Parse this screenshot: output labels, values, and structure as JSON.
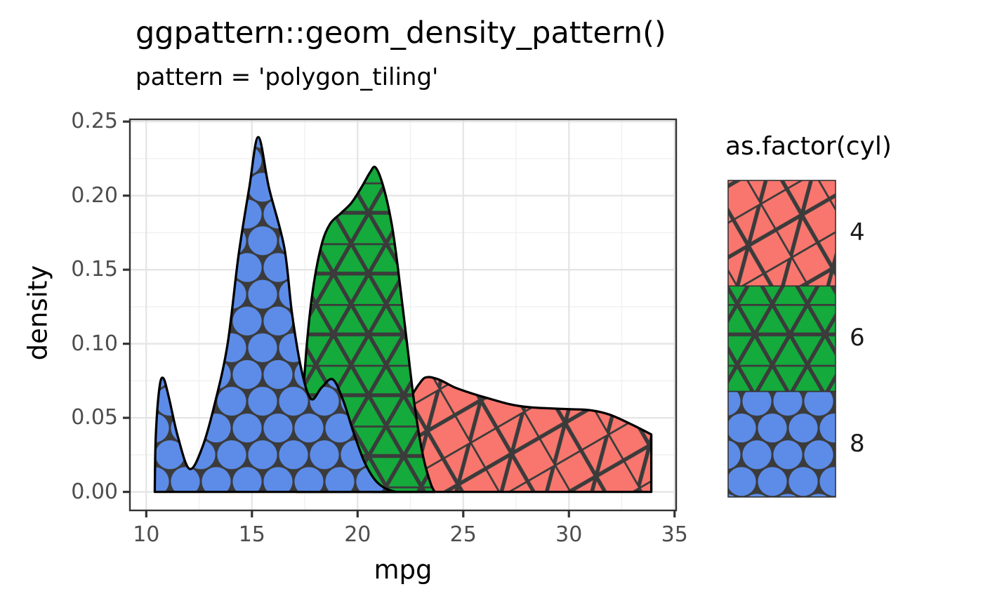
{
  "chart_data": {
    "type": "area",
    "title": "ggpattern::geom_density_pattern()",
    "subtitle": "pattern = 'polygon_tiling'",
    "xlabel": "mpg",
    "ylabel": "density",
    "legend_title": "as.factor(cyl)",
    "legend_position": "right",
    "xlim": [
      9.225,
      35.075
    ],
    "ylim": [
      -0.0125,
      0.2515
    ],
    "x_tick_values": [
      10,
      15,
      20,
      25,
      30,
      35
    ],
    "x_tick_labels": [
      "10",
      "15",
      "20",
      "25",
      "30",
      "35"
    ],
    "y_tick_values": [
      0.0,
      0.05,
      0.1,
      0.15,
      0.2,
      0.25
    ],
    "y_tick_labels": [
      "0.00",
      "0.05",
      "0.10",
      "0.15",
      "0.20",
      "0.25"
    ],
    "grid": "major-and-minor",
    "series": [
      {
        "name": "4",
        "color": "#F8766D",
        "pattern": "polygon-tiling-squares",
        "points": [
          [
            20.7,
            0
          ],
          [
            21.2,
            0.012
          ],
          [
            21.8,
            0.034
          ],
          [
            22.4,
            0.06
          ],
          [
            23.0,
            0.0745
          ],
          [
            23.35,
            0.0775
          ],
          [
            23.9,
            0.0755
          ],
          [
            24.6,
            0.0705
          ],
          [
            25.4,
            0.0665
          ],
          [
            26.3,
            0.0627
          ],
          [
            27.2,
            0.0592
          ],
          [
            28.1,
            0.0572
          ],
          [
            29.1,
            0.0564
          ],
          [
            30.1,
            0.0558
          ],
          [
            31.0,
            0.0552
          ],
          [
            31.9,
            0.0523
          ],
          [
            32.9,
            0.046
          ],
          [
            33.9,
            0.0388
          ]
        ]
      },
      {
        "name": "6",
        "color": "#14AA3C",
        "pattern": "polygon-tiling-triangles",
        "points": [
          [
            17.1,
            0
          ],
          [
            17.35,
            0.05
          ],
          [
            17.6,
            0.1
          ],
          [
            17.9,
            0.138
          ],
          [
            18.3,
            0.167
          ],
          [
            18.7,
            0.181
          ],
          [
            19.2,
            0.188
          ],
          [
            19.7,
            0.195
          ],
          [
            20.2,
            0.206
          ],
          [
            20.6,
            0.216
          ],
          [
            20.85,
            0.219
          ],
          [
            21.2,
            0.207
          ],
          [
            21.6,
            0.182
          ],
          [
            21.9,
            0.152
          ],
          [
            22.3,
            0.105
          ],
          [
            22.7,
            0.058
          ],
          [
            23.1,
            0.024
          ],
          [
            23.45,
            0.006
          ],
          [
            23.65,
            0
          ]
        ]
      },
      {
        "name": "8",
        "color": "#5C8CE8",
        "pattern": "circle-packing",
        "points": [
          [
            10.4,
            0
          ],
          [
            10.45,
            0.038
          ],
          [
            10.62,
            0.07
          ],
          [
            10.8,
            0.0769
          ],
          [
            11.05,
            0.065
          ],
          [
            11.5,
            0.037
          ],
          [
            12.05,
            0.0155
          ],
          [
            12.65,
            0.03
          ],
          [
            13.25,
            0.06
          ],
          [
            13.85,
            0.1
          ],
          [
            14.37,
            0.16
          ],
          [
            14.87,
            0.205
          ],
          [
            15.3,
            0.2395
          ],
          [
            15.81,
            0.205
          ],
          [
            16.53,
            0.165
          ],
          [
            16.9,
            0.12
          ],
          [
            17.35,
            0.082
          ],
          [
            17.8,
            0.0627
          ],
          [
            18.3,
            0.0705
          ],
          [
            18.82,
            0.076
          ],
          [
            19.3,
            0.0625
          ],
          [
            19.8,
            0.0405
          ],
          [
            20.3,
            0.021
          ],
          [
            20.8,
            0.0085
          ],
          [
            21.3,
            0.0025
          ],
          [
            21.8,
            0
          ]
        ]
      }
    ]
  },
  "colors": {
    "background": "#FFFFFF",
    "panel_background": "#FFFFFF",
    "grid_major": "#E4E4E4",
    "grid_minor": "#F0F0F0",
    "panel_border": "#333333",
    "tick_mark": "#333333",
    "tick_label": "#4D4D4D",
    "text": "#000000",
    "area_outline": "#000000",
    "pattern_line": "#3B3B3B"
  }
}
